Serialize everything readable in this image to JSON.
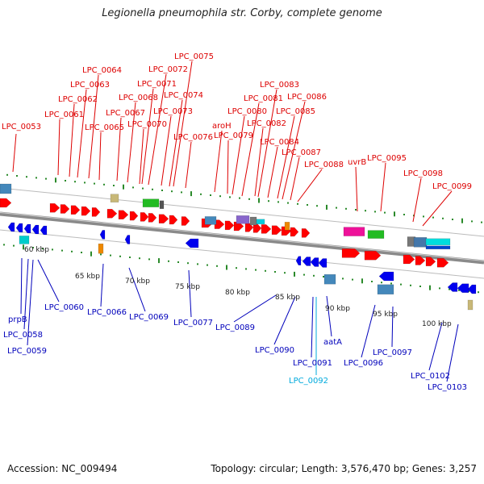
{
  "title": "Legionella pneumophila str. Corby, complete genome",
  "footer": {
    "accession": "Accession: NC_009494",
    "stats": "Topology: circular; Length: 3,576,470 bp; Genes: 3,257"
  },
  "colors": {
    "forward_gene": "#ff0000",
    "reverse_gene": "#0000ee",
    "label_forward": "#dd0000",
    "label_reverse": "#0000bb",
    "label_highlight": "#00aadd",
    "tick": "#2a8a2a",
    "backbone": "#888888"
  },
  "scale_labels": [
    "60 kbp",
    "65 kbp",
    "70 kbp",
    "75 kbp",
    "80 kbp",
    "85 kbp",
    "90 kbp",
    "95 kbp",
    "100 kbp"
  ],
  "top_labels": [
    "LPC_0053",
    "LPC_0061",
    "LPC_0062",
    "LPC_0063",
    "LPC_0064",
    "LPC_0065",
    "LPC_0067",
    "LPC_0068",
    "LPC_0070",
    "LPC_0071",
    "LPC_0072",
    "LPC_0073",
    "LPC_0074",
    "LPC_0075",
    "LPC_0076",
    "aroH",
    "LPC_0079",
    "LPC_0080",
    "LPC_0081",
    "LPC_0082",
    "LPC_0083",
    "LPC_0084",
    "LPC_0085",
    "LPC_0086",
    "LPC_0087",
    "LPC_0088",
    "uvrB",
    "LPC_0095",
    "LPC_0098",
    "LPC_0099"
  ],
  "bottom_labels": [
    "prpB",
    "LPC_0058",
    "LPC_0059",
    "LPC_0060",
    "LPC_0066",
    "LPC_0069",
    "LPC_0077",
    "LPC_0089",
    "LPC_0090",
    "LPC_0091",
    "LPC_0092",
    "aatA",
    "LPC_0096",
    "LPC_0097",
    "LPC_0102",
    "LPC_0103"
  ]
}
